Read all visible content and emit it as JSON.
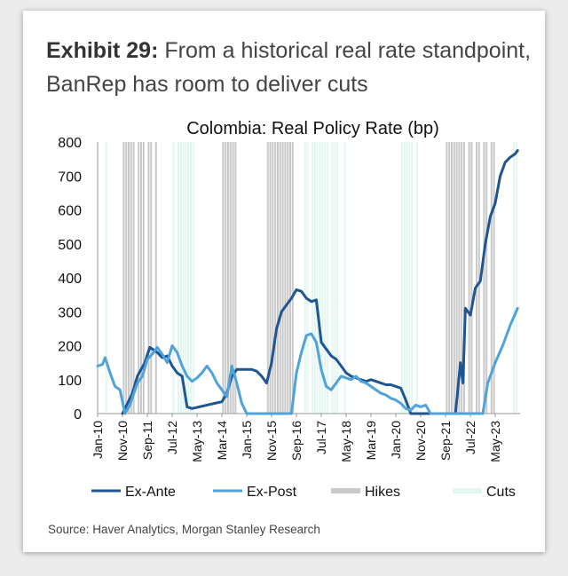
{
  "exhibit": {
    "label": "Exhibit 29:",
    "text": "From a historical real rate standpoint, BanRep has room to deliver cuts"
  },
  "source": "Source: Haver Analytics, Morgan Stanley Research",
  "chart_data": {
    "type": "line",
    "title": "Colombia: Real Policy Rate (bp)",
    "xlabel": "",
    "ylabel": "",
    "ylim": [
      0,
      800
    ],
    "yticks": [
      0,
      100,
      200,
      300,
      400,
      500,
      600,
      700,
      800
    ],
    "xlim": [
      "2010-01",
      "2024-03"
    ],
    "xticks": [
      {
        "label": "Jan-10",
        "date": "2010-01"
      },
      {
        "label": "Nov-10",
        "date": "2010-11"
      },
      {
        "label": "Sep-11",
        "date": "2011-09"
      },
      {
        "label": "Jul-12",
        "date": "2012-07"
      },
      {
        "label": "May-13",
        "date": "2013-05"
      },
      {
        "label": "Mar-14",
        "date": "2014-03"
      },
      {
        "label": "Jan-15",
        "date": "2015-01"
      },
      {
        "label": "Nov-15",
        "date": "2015-11"
      },
      {
        "label": "Sep-16",
        "date": "2016-09"
      },
      {
        "label": "Jul-17",
        "date": "2017-07"
      },
      {
        "label": "May-18",
        "date": "2018-05"
      },
      {
        "label": "Mar-19",
        "date": "2019-03"
      },
      {
        "label": "Jan-20",
        "date": "2020-01"
      },
      {
        "label": "Nov-20",
        "date": "2020-11"
      },
      {
        "label": "Sep-21",
        "date": "2021-09"
      },
      {
        "label": "Jul-22",
        "date": "2022-07"
      },
      {
        "label": "May-23",
        "date": "2023-05"
      }
    ],
    "legend_position": "bottom",
    "series": [
      {
        "name": "Ex-Ante",
        "color": "#1f5591",
        "points": [
          [
            "2010-11",
            0
          ],
          [
            "2011-03",
            60
          ],
          [
            "2011-05",
            110
          ],
          [
            "2011-08",
            150
          ],
          [
            "2011-10",
            195
          ],
          [
            "2011-11",
            190
          ],
          [
            "2012-01",
            180
          ],
          [
            "2012-03",
            165
          ],
          [
            "2012-05",
            170
          ],
          [
            "2012-07",
            140
          ],
          [
            "2012-09",
            120
          ],
          [
            "2012-11",
            110
          ],
          [
            "2013-01",
            20
          ],
          [
            "2013-03",
            15
          ],
          [
            "2013-06",
            20
          ],
          [
            "2013-09",
            25
          ],
          [
            "2013-12",
            30
          ],
          [
            "2014-03",
            35
          ],
          [
            "2014-05",
            60
          ],
          [
            "2014-07",
            110
          ],
          [
            "2014-09",
            130
          ],
          [
            "2014-11",
            130
          ],
          [
            "2015-01",
            130
          ],
          [
            "2015-03",
            130
          ],
          [
            "2015-05",
            125
          ],
          [
            "2015-07",
            110
          ],
          [
            "2015-09",
            90
          ],
          [
            "2015-11",
            150
          ],
          [
            "2016-01",
            250
          ],
          [
            "2016-03",
            300
          ],
          [
            "2016-05",
            320
          ],
          [
            "2016-07",
            340
          ],
          [
            "2016-09",
            365
          ],
          [
            "2016-11",
            360
          ],
          [
            "2017-01",
            340
          ],
          [
            "2017-03",
            330
          ],
          [
            "2017-05",
            335
          ],
          [
            "2017-07",
            210
          ],
          [
            "2017-09",
            190
          ],
          [
            "2017-11",
            170
          ],
          [
            "2018-01",
            160
          ],
          [
            "2018-03",
            140
          ],
          [
            "2018-05",
            120
          ],
          [
            "2018-07",
            110
          ],
          [
            "2018-09",
            105
          ],
          [
            "2018-11",
            100
          ],
          [
            "2019-01",
            95
          ],
          [
            "2019-03",
            100
          ],
          [
            "2019-05",
            95
          ],
          [
            "2019-07",
            90
          ],
          [
            "2019-09",
            85
          ],
          [
            "2019-11",
            85
          ],
          [
            "2020-01",
            80
          ],
          [
            "2020-03",
            75
          ],
          [
            "2020-05",
            40
          ],
          [
            "2020-07",
            0
          ],
          [
            "2022-01",
            0
          ],
          [
            "2022-03",
            150
          ],
          [
            "2022-04",
            90
          ],
          [
            "2022-05",
            310
          ],
          [
            "2022-07",
            290
          ],
          [
            "2022-09",
            370
          ],
          [
            "2022-11",
            390
          ],
          [
            "2023-01",
            500
          ],
          [
            "2023-03",
            580
          ],
          [
            "2023-05",
            620
          ],
          [
            "2023-07",
            700
          ],
          [
            "2023-09",
            740
          ],
          [
            "2023-11",
            755
          ],
          [
            "2024-01",
            765
          ],
          [
            "2024-02",
            775
          ]
        ]
      },
      {
        "name": "Ex-Post",
        "color": "#4fa3d9",
        "points": [
          [
            "2010-01",
            140
          ],
          [
            "2010-03",
            145
          ],
          [
            "2010-04",
            165
          ],
          [
            "2010-06",
            120
          ],
          [
            "2010-08",
            80
          ],
          [
            "2010-10",
            70
          ],
          [
            "2010-12",
            0
          ],
          [
            "2011-02",
            25
          ],
          [
            "2011-05",
            90
          ],
          [
            "2011-07",
            110
          ],
          [
            "2011-09",
            160
          ],
          [
            "2011-11",
            175
          ],
          [
            "2012-01",
            195
          ],
          [
            "2012-03",
            175
          ],
          [
            "2012-05",
            150
          ],
          [
            "2012-07",
            200
          ],
          [
            "2012-09",
            180
          ],
          [
            "2012-11",
            140
          ],
          [
            "2013-01",
            110
          ],
          [
            "2013-03",
            95
          ],
          [
            "2013-05",
            105
          ],
          [
            "2013-07",
            120
          ],
          [
            "2013-09",
            140
          ],
          [
            "2013-11",
            120
          ],
          [
            "2014-01",
            90
          ],
          [
            "2014-03",
            70
          ],
          [
            "2014-05",
            50
          ],
          [
            "2014-07",
            140
          ],
          [
            "2014-09",
            90
          ],
          [
            "2014-11",
            30
          ],
          [
            "2015-01",
            0
          ],
          [
            "2015-06",
            0
          ],
          [
            "2016-07",
            0
          ],
          [
            "2016-09",
            120
          ],
          [
            "2016-11",
            180
          ],
          [
            "2017-01",
            230
          ],
          [
            "2017-03",
            235
          ],
          [
            "2017-05",
            210
          ],
          [
            "2017-07",
            130
          ],
          [
            "2017-09",
            80
          ],
          [
            "2017-11",
            70
          ],
          [
            "2018-01",
            90
          ],
          [
            "2018-03",
            110
          ],
          [
            "2018-05",
            105
          ],
          [
            "2018-07",
            100
          ],
          [
            "2018-09",
            110
          ],
          [
            "2018-11",
            95
          ],
          [
            "2019-01",
            90
          ],
          [
            "2019-03",
            80
          ],
          [
            "2019-05",
            70
          ],
          [
            "2019-07",
            60
          ],
          [
            "2019-09",
            55
          ],
          [
            "2019-11",
            45
          ],
          [
            "2020-01",
            40
          ],
          [
            "2020-03",
            30
          ],
          [
            "2020-05",
            15
          ],
          [
            "2020-07",
            10
          ],
          [
            "2020-09",
            25
          ],
          [
            "2020-11",
            20
          ],
          [
            "2021-01",
            25
          ],
          [
            "2021-03",
            0
          ],
          [
            "2022-12",
            0
          ],
          [
            "2023-02",
            90
          ],
          [
            "2023-05",
            150
          ],
          [
            "2023-08",
            200
          ],
          [
            "2023-11",
            260
          ],
          [
            "2024-02",
            310
          ]
        ]
      }
    ],
    "shading": [
      {
        "name": "Hikes",
        "color": "#c9c9c9",
        "months": [
          "2010-11",
          "2010-12",
          "2011-01",
          "2011-02",
          "2011-03",
          "2011-05",
          "2011-06",
          "2011-07",
          "2011-09",
          "2011-10",
          "2011-12",
          "2014-03",
          "2014-04",
          "2014-05",
          "2014-06",
          "2014-07",
          "2014-08",
          "2015-09",
          "2015-10",
          "2015-11",
          "2015-12",
          "2016-01",
          "2016-02",
          "2016-03",
          "2016-04",
          "2016-05",
          "2016-06",
          "2016-07",
          "2021-09",
          "2021-10",
          "2021-11",
          "2021-12",
          "2022-01",
          "2022-02",
          "2022-03",
          "2022-04",
          "2022-06",
          "2022-07",
          "2022-09",
          "2022-10",
          "2022-12",
          "2023-01",
          "2023-03",
          "2023-04"
        ]
      },
      {
        "name": "Cuts",
        "color": "#e3f6f1",
        "months": [
          "2010-04",
          "2012-07",
          "2012-09",
          "2012-10",
          "2012-11",
          "2012-12",
          "2013-01",
          "2013-02",
          "2013-03",
          "2016-12",
          "2017-01",
          "2017-03",
          "2017-04",
          "2017-05",
          "2017-06",
          "2017-07",
          "2017-08",
          "2017-09",
          "2017-11",
          "2017-12",
          "2018-01",
          "2018-04",
          "2020-03",
          "2020-04",
          "2020-05",
          "2020-06",
          "2020-07",
          "2020-09",
          "2023-12",
          "2024-01"
        ]
      }
    ]
  }
}
